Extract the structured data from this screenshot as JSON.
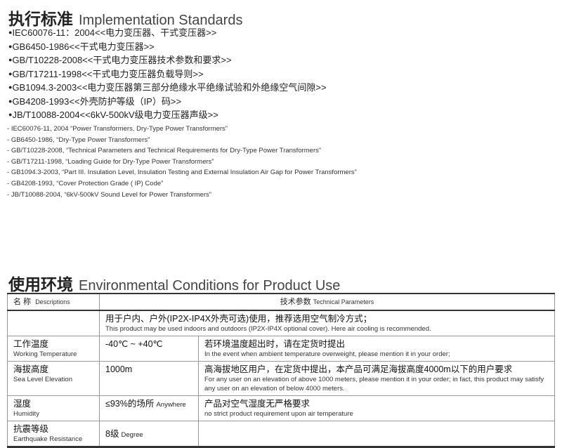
{
  "section1": {
    "title_cn": "执行标准",
    "title_en": "Implementation Standards",
    "standards_cn": [
      "IEC60076-11：2004<<电力变压器、干式变压器>>",
      "GB6450-1986<<干式电力变压器>>",
      "GB/T10228-2008<<干式电力变压器技术参数和要求>>",
      "GB/T17211-1998<<干式电力变压器负载导则>>",
      "GB1094.3-2003<<电力变压器第三部分绝缘水平绝缘试验和外绝缘空气间隙>>",
      "GB4208-1993<<外壳防护等级（IP）码>>",
      "JB/T10088-2004<<6kV-500kV级电力变压器声级>>"
    ],
    "standards_en": [
      "IEC60076-11, 2004  “Power  Transformers, Dry-Type Power Transformers”",
      "GB6450-1986,  “Dry-Type Power  Transformers”",
      "GB/T10228-2008,  “Technical Parameters and Technical Requirements for Dry-Type Power Transformers”",
      "GB/T17211-1998,  “Loading Guide for Dry-Type Power Transformers”",
      "GB1094.3-2003,  “Part III. Insulation Level, Insulation Testing and External Insulation Air Gap for Power Transformers”",
      "GB4208-1993,  “Cover Protection Grade ( IP) Code”",
      "JB/T10088-2004,  “6kV-500kV Sound Level for Power Transformers”"
    ]
  },
  "section2": {
    "title_cn": "使用环境",
    "title_en": "Environmental Conditions for Product Use",
    "header": {
      "name_cn": "名 称",
      "name_en": "Descriptions",
      "param_cn": "技术参数",
      "param_en": "Technical Parameters"
    },
    "intro": {
      "cn": "用于户内、户外(IP2X-IP4X外壳可选)使用，推荐选用空气制冷方式；",
      "en": "This product may be used indoors and outdoors (IP2X-IP4X optional cover). Here air cooling is recommended."
    },
    "rows": [
      {
        "name_cn": "工作温度",
        "name_en": "Working Temperature",
        "value": "-40℃ ~ +40℃",
        "note_cn": "若环境温度超出时，请在定货时提出",
        "note_en": "In the event when ambient temperature overweight, please mention it in your order;"
      },
      {
        "name_cn": "海拔高度",
        "name_en": "Sea Level Elevation",
        "value": "1000m",
        "note_cn": "高海拔地区用户，在定货中提出，本产品可满足海拔高度4000m以下的用户要求",
        "note_en": "For any user on an elevation of above 1000 meters, please mention it in your order; in fact, this product may satisfy any user on an elevation of below 4000 meters."
      },
      {
        "name_cn": "湿度",
        "name_en": "Humidity",
        "value": "≤93%的场所",
        "value_en": "Anywhere",
        "note_cn": "产品对空气湿度无严格要求",
        "note_en": "no strict product requirement upon air temperature"
      },
      {
        "name_cn": "抗震等级",
        "name_en": "Earthquake Resistance",
        "value": "8级",
        "value_en": "Degree",
        "note_cn": "",
        "note_en": ""
      }
    ]
  }
}
